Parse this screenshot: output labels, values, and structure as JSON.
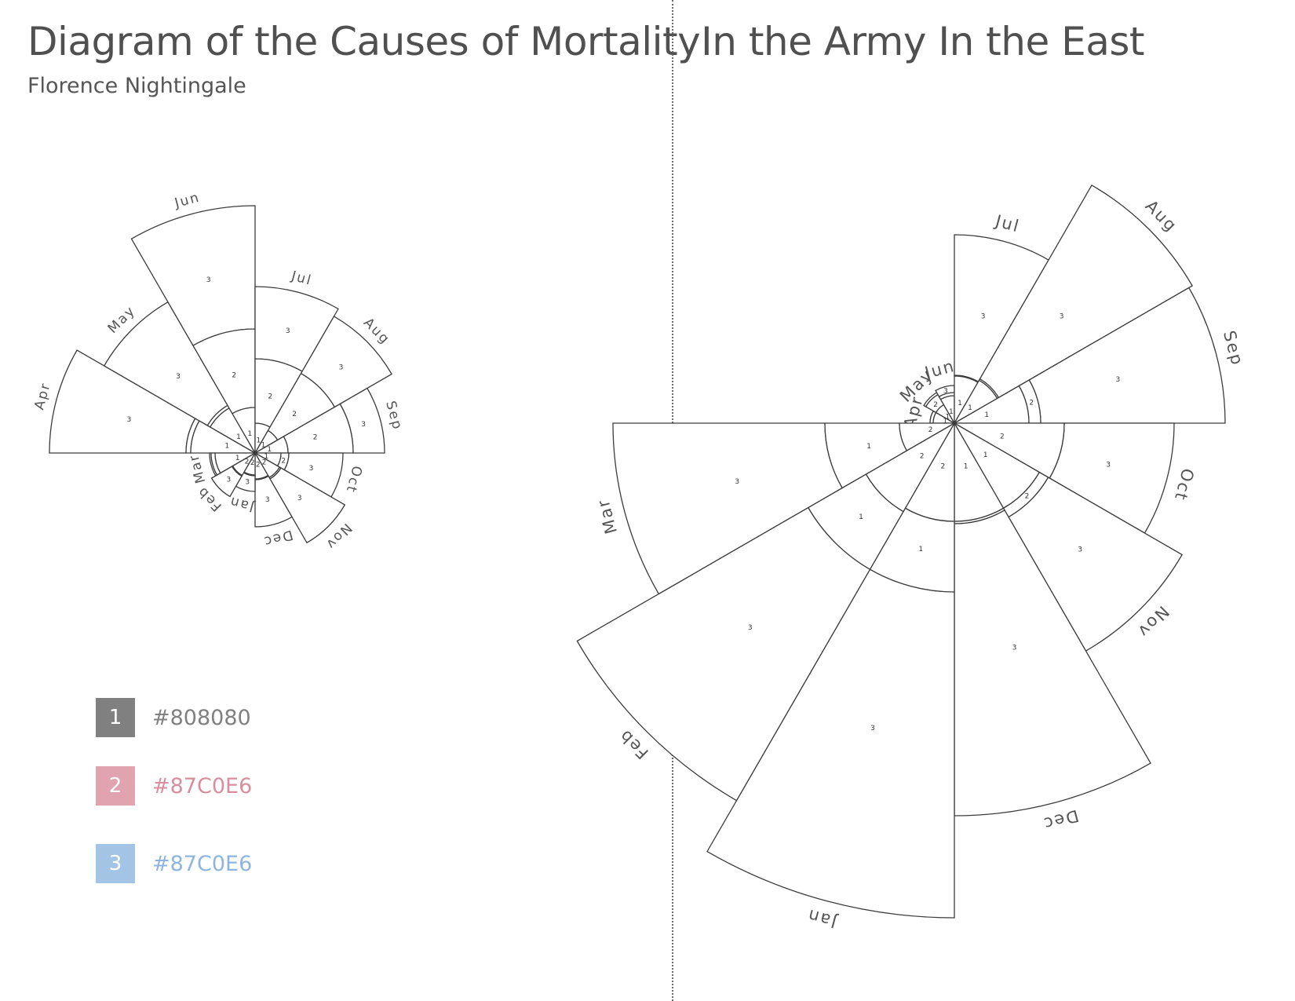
{
  "header": {
    "left_title": "Diagram of the Causes of Mortality",
    "right_title": "In the Army In the East",
    "subtitle": "Florence Nightingale"
  },
  "legend": [
    {
      "number": "1",
      "label": "#808080",
      "color": "#808080",
      "text_color": "#808080"
    },
    {
      "number": "2",
      "label": "#87C0E6",
      "color": "#E1A3AF",
      "text_color": "#D88E9E"
    },
    {
      "number": "3",
      "label": "#87C0E6",
      "color": "#A3C4E5",
      "text_color": "#8DB5E0"
    }
  ],
  "chart_data": [
    {
      "type": "polar-area",
      "name": "left",
      "segment_labels": [
        "1",
        "2",
        "3"
      ],
      "months": [
        "Apr",
        "May",
        "Jun",
        "Jul",
        "Aug",
        "Sep",
        "Oct",
        "Nov",
        "Dec",
        "Jan",
        "Feb",
        "Mar"
      ],
      "radii": {
        "1": [
          82,
          66,
          58,
          38,
          33,
          42,
          33,
          38,
          34,
          29,
          34,
          51
        ],
        "2": [
          88,
          70,
          158,
          120,
          117,
          125,
          43,
          36,
          33,
          28,
          33,
          56
        ],
        "3": [
          262,
          222,
          315,
          212,
          201,
          165,
          112,
          132,
          94,
          49,
          64,
          58
        ]
      }
    },
    {
      "type": "polar-area",
      "name": "right",
      "segment_labels": [
        "1",
        "2",
        "3"
      ],
      "months": [
        "Apr",
        "May",
        "Jun",
        "Jul",
        "Aug",
        "Sep",
        "Oct",
        "Nov",
        "Dec",
        "Jan",
        "Feb",
        "Mar"
      ],
      "radii": {
        "1": [
          27,
          27,
          35,
          60,
          63,
          95,
          140,
          125,
          125,
          215,
          215,
          165
        ],
        "2": [
          31,
          42,
          39,
          61,
          65,
          110,
          140,
          138,
          128,
          125,
          130,
          70
        ],
        "3": [
          31,
          45,
          48,
          240,
          350,
          345,
          280,
          335,
          500,
          630,
          555,
          435
        ]
      }
    }
  ]
}
